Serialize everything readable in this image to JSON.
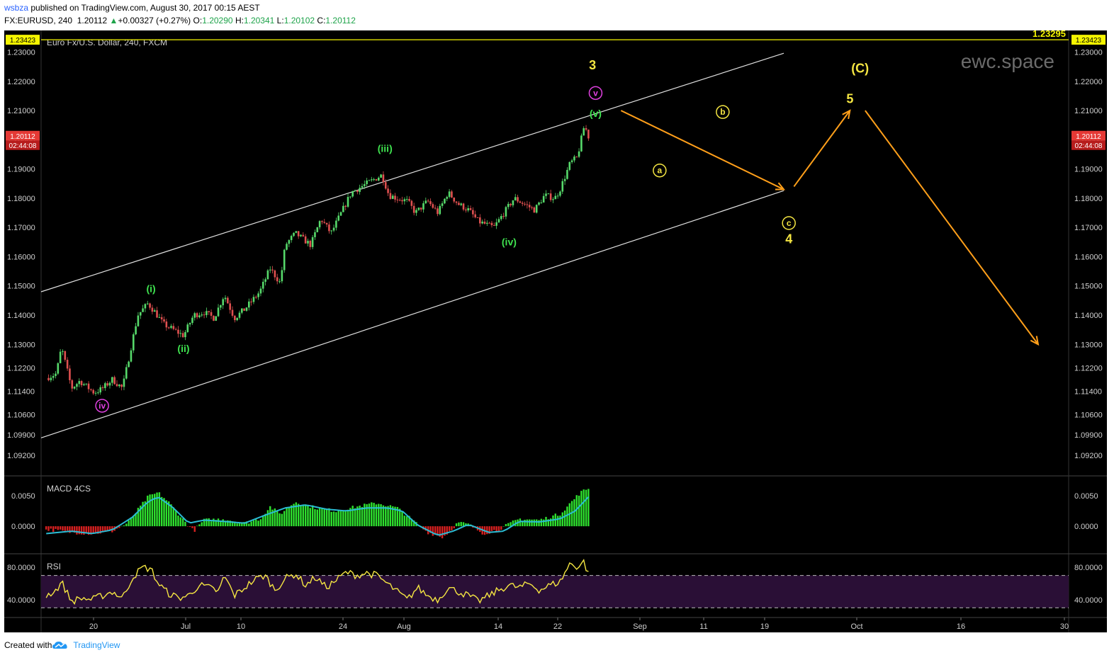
{
  "header": {
    "user": "wsbza",
    "published": "published on TradingView.com, August 30, 2017 00:15 AEST",
    "symbol": "FX:EURUSD, 240",
    "price": "1.20112",
    "change_arrow": "▲",
    "change": "+0.00327 (+0.27%)",
    "o_label": "O:",
    "o_value": "1.20290",
    "h_label": "H:",
    "h_value": "1.20341",
    "l_label": "L:",
    "l_value": "1.20102",
    "c_label": "C:",
    "c_value": "1.20112"
  },
  "footer": {
    "created_with": "Created with",
    "brand": "TradingView"
  },
  "colors": {
    "background": "#000000",
    "up_candle": "#56d96a",
    "down_candle": "#e05050",
    "count_green": "#3fe34f",
    "count_yellow": "#f5e642",
    "count_magenta": "#e040e0",
    "arrow": "#ff9f1a",
    "rsi": "#f5e642",
    "macd_signal": "#2bbcd4",
    "hline": "#f5f500"
  },
  "chart_data": [
    {
      "type": "candlestick",
      "title": "Euro Fx/U.S. Dollar, 240, FXCM",
      "watermark": "ewc.space",
      "ylim": [
        1.085,
        1.2345
      ],
      "ytick_labels": [
        "1.23000",
        "1.22000",
        "1.21000",
        "1.20000",
        "1.19000",
        "1.18000",
        "1.17000",
        "1.16000",
        "1.15000",
        "1.14000",
        "1.13000",
        "1.12200",
        "1.11400",
        "1.10600",
        "1.09900",
        "1.09200"
      ],
      "xtick_labels": [
        "20",
        "Jul",
        "10",
        "24",
        "Aug",
        "14",
        "22",
        "Sep",
        "11",
        "19",
        "Oct",
        "16",
        "30"
      ],
      "current_price": "1.20112",
      "countdown": "02:44:08",
      "hline": {
        "value": 1.23423,
        "label": "1.23423",
        "label_right": "1.23295"
      },
      "path_points": [
        [
          17.5,
          1.1185
        ],
        [
          18.5,
          1.12
        ],
        [
          19.0,
          1.129
        ],
        [
          20.0,
          1.115
        ],
        [
          20.8,
          1.1175
        ],
        [
          21.5,
          1.1155
        ],
        [
          22.2,
          1.1135
        ],
        [
          23.0,
          1.1148
        ],
        [
          24.0,
          1.118
        ],
        [
          25.0,
          1.115
        ],
        [
          26.5,
          1.14
        ],
        [
          27.5,
          1.144
        ],
        [
          28.2,
          1.141
        ],
        [
          29.0,
          1.137
        ],
        [
          30.0,
          1.135
        ],
        [
          31.0,
          1.133
        ],
        [
          32.0,
          1.14
        ],
        [
          33.0,
          1.141
        ],
        [
          34.0,
          1.139
        ],
        [
          35.0,
          1.147
        ],
        [
          36.0,
          1.139
        ],
        [
          37.0,
          1.142
        ],
        [
          38.5,
          1.148
        ],
        [
          39.5,
          1.156
        ],
        [
          40.5,
          1.151
        ],
        [
          41.0,
          1.164
        ],
        [
          42.0,
          1.168
        ],
        [
          43.5,
          1.164
        ],
        [
          44.5,
          1.173
        ],
        [
          45.5,
          1.168
        ],
        [
          46.5,
          1.175
        ],
        [
          47.5,
          1.182
        ],
        [
          48.5,
          1.184
        ],
        [
          49.5,
          1.186
        ],
        [
          50.5,
          1.188
        ],
        [
          51.2,
          1.181
        ],
        [
          52.0,
          1.18
        ],
        [
          53.0,
          1.179
        ],
        [
          53.8,
          1.175
        ],
        [
          55.0,
          1.179
        ],
        [
          56.0,
          1.175
        ],
        [
          57.0,
          1.182
        ],
        [
          58.0,
          1.178
        ],
        [
          59.0,
          1.176
        ],
        [
          60.0,
          1.172
        ],
        [
          61.5,
          1.17
        ],
        [
          62.5,
          1.175
        ],
        [
          63.5,
          1.18
        ],
        [
          64.5,
          1.178
        ],
        [
          65.5,
          1.176
        ],
        [
          66.5,
          1.181
        ],
        [
          67.5,
          1.18
        ],
        [
          68.0,
          1.183
        ],
        [
          69.0,
          1.192
        ],
        [
          69.7,
          1.194
        ],
        [
          70.4,
          1.205
        ],
        [
          70.8,
          1.2011
        ]
      ],
      "channel": [
        {
          "x": [
            17.0,
            90.0
          ],
          "y": [
            1.148,
            1.2296
          ]
        },
        {
          "x": [
            17.0,
            90.0
          ],
          "y": [
            1.098,
            1.1826
          ]
        }
      ],
      "wave_labels": [
        {
          "text": "(i)",
          "x": 27.8,
          "y": 1.149,
          "color": "green"
        },
        {
          "text": "(ii)",
          "x": 31.0,
          "y": 1.1285,
          "color": "green"
        },
        {
          "text": "(iii)",
          "x": 50.8,
          "y": 1.197,
          "color": "green"
        },
        {
          "text": "(iv)",
          "x": 63.0,
          "y": 1.165,
          "color": "green"
        },
        {
          "text": "(v)",
          "x": 71.5,
          "y": 1.209,
          "color": "green"
        },
        {
          "text": "iv",
          "x": 23.0,
          "y": 1.109,
          "color": "magenta",
          "circled": true
        },
        {
          "text": "v",
          "x": 71.5,
          "y": 1.216,
          "color": "magenta",
          "circled": true
        },
        {
          "text": "3",
          "x": 71.2,
          "y": 1.2255,
          "color": "yellow"
        },
        {
          "text": "a",
          "x": 77.8,
          "y": 1.1895,
          "color": "yellow",
          "circled": true
        },
        {
          "text": "b",
          "x": 84.0,
          "y": 1.2095,
          "color": "yellow",
          "circled": true
        },
        {
          "text": "c",
          "x": 90.5,
          "y": 1.1715,
          "color": "yellow",
          "circled": true
        },
        {
          "text": "4",
          "x": 90.5,
          "y": 1.166,
          "color": "yellow"
        },
        {
          "text": "(C)",
          "x": 97.5,
          "y": 1.2245,
          "color": "yellow"
        },
        {
          "text": "5",
          "x": 96.5,
          "y": 1.214,
          "color": "yellow"
        }
      ],
      "projection": [
        {
          "x": [
            74.0,
            90.0
          ],
          "y": [
            1.21,
            1.183
          ]
        },
        {
          "x": [
            91.0,
            96.5
          ],
          "y": [
            1.184,
            1.21
          ]
        },
        {
          "x": [
            98.0,
            115.0
          ],
          "y": [
            1.21,
            1.13
          ]
        }
      ]
    },
    {
      "type": "bar",
      "title": "MACD 4CS",
      "ylim": [
        -0.0045,
        0.008
      ],
      "ytick_labels": [
        "0.0050",
        "0.0000"
      ],
      "histogram_points": [
        [
          17.5,
          -0.0005
        ],
        [
          20,
          -0.001
        ],
        [
          22,
          -0.0012
        ],
        [
          24,
          -0.0008
        ],
        [
          25.5,
          0.0005
        ],
        [
          27.5,
          0.0048
        ],
        [
          28.5,
          0.0055
        ],
        [
          29.5,
          0.004
        ],
        [
          31,
          0.001
        ],
        [
          32,
          -0.0008
        ],
        [
          33,
          0.001
        ],
        [
          35,
          0.0012
        ],
        [
          37,
          0.0005
        ],
        [
          38.5,
          0.0012
        ],
        [
          39.5,
          0.0032
        ],
        [
          40.5,
          0.002
        ],
        [
          42,
          0.004
        ],
        [
          44,
          0.003
        ],
        [
          46,
          0.0025
        ],
        [
          48,
          0.0032
        ],
        [
          50,
          0.0038
        ],
        [
          52,
          0.003
        ],
        [
          53.5,
          0.001
        ],
        [
          55,
          -0.001
        ],
        [
          56.5,
          -0.0018
        ],
        [
          58,
          0.0006
        ],
        [
          59,
          0.0003
        ],
        [
          60.5,
          -0.0012
        ],
        [
          62,
          -0.0005
        ],
        [
          64,
          0.0012
        ],
        [
          66,
          0.001
        ],
        [
          68,
          0.002
        ],
        [
          70,
          0.0055
        ],
        [
          70.8,
          0.0062
        ]
      ],
      "signal_points": [
        [
          17.5,
          -0.0012
        ],
        [
          20,
          -0.0008
        ],
        [
          22,
          -0.0012
        ],
        [
          24,
          -0.0006
        ],
        [
          26,
          0.0015
        ],
        [
          27.5,
          0.004
        ],
        [
          28.5,
          0.0048
        ],
        [
          30,
          0.003
        ],
        [
          31.5,
          0.0005
        ],
        [
          33,
          0.001
        ],
        [
          35,
          0.0008
        ],
        [
          37,
          0.0005
        ],
        [
          39,
          0.0018
        ],
        [
          41,
          0.003
        ],
        [
          43,
          0.0035
        ],
        [
          45,
          0.0028
        ],
        [
          47,
          0.0025
        ],
        [
          49,
          0.003
        ],
        [
          51,
          0.003
        ],
        [
          52.5,
          0.0025
        ],
        [
          54,
          0.0002
        ],
        [
          56,
          -0.0015
        ],
        [
          57.5,
          -0.0008
        ],
        [
          59,
          0.0003
        ],
        [
          61,
          -0.001
        ],
        [
          62.5,
          -0.0008
        ],
        [
          64,
          0.0008
        ],
        [
          66,
          0.0007
        ],
        [
          68,
          0.0012
        ],
        [
          69.5,
          0.0025
        ],
        [
          70.8,
          0.0048
        ]
      ]
    },
    {
      "type": "line",
      "title": "RSI",
      "ylim": [
        18,
        95
      ],
      "ytick_labels": [
        "80.0000",
        "40.0000"
      ],
      "band": [
        30,
        70
      ],
      "points": [
        [
          17.5,
          45
        ],
        [
          18.5,
          52
        ],
        [
          19,
          62
        ],
        [
          20,
          38
        ],
        [
          21,
          42
        ],
        [
          22,
          40
        ],
        [
          23,
          45
        ],
        [
          24,
          50
        ],
        [
          25,
          42
        ],
        [
          26,
          68
        ],
        [
          27,
          80
        ],
        [
          27.8,
          78
        ],
        [
          28.5,
          60
        ],
        [
          29.5,
          48
        ],
        [
          30.5,
          42
        ],
        [
          31.5,
          45
        ],
        [
          32.5,
          58
        ],
        [
          33.5,
          55
        ],
        [
          34.5,
          50
        ],
        [
          35,
          70
        ],
        [
          36,
          45
        ],
        [
          37,
          55
        ],
        [
          38,
          65
        ],
        [
          39,
          70
        ],
        [
          40,
          52
        ],
        [
          41,
          66
        ],
        [
          42,
          72
        ],
        [
          43,
          58
        ],
        [
          44,
          68
        ],
        [
          45,
          55
        ],
        [
          46,
          64
        ],
        [
          47,
          74
        ],
        [
          48,
          70
        ],
        [
          49,
          73
        ],
        [
          50,
          70
        ],
        [
          51,
          60
        ],
        [
          52,
          50
        ],
        [
          53,
          40
        ],
        [
          54,
          55
        ],
        [
          55,
          45
        ],
        [
          56,
          40
        ],
        [
          57,
          55
        ],
        [
          58,
          50
        ],
        [
          59,
          45
        ],
        [
          60,
          38
        ],
        [
          61,
          45
        ],
        [
          62,
          52
        ],
        [
          63,
          58
        ],
        [
          64,
          55
        ],
        [
          65,
          60
        ],
        [
          66,
          52
        ],
        [
          67,
          58
        ],
        [
          68,
          62
        ],
        [
          69,
          85
        ],
        [
          69.8,
          80
        ],
        [
          70.3,
          88
        ],
        [
          70.8,
          72
        ]
      ]
    }
  ]
}
